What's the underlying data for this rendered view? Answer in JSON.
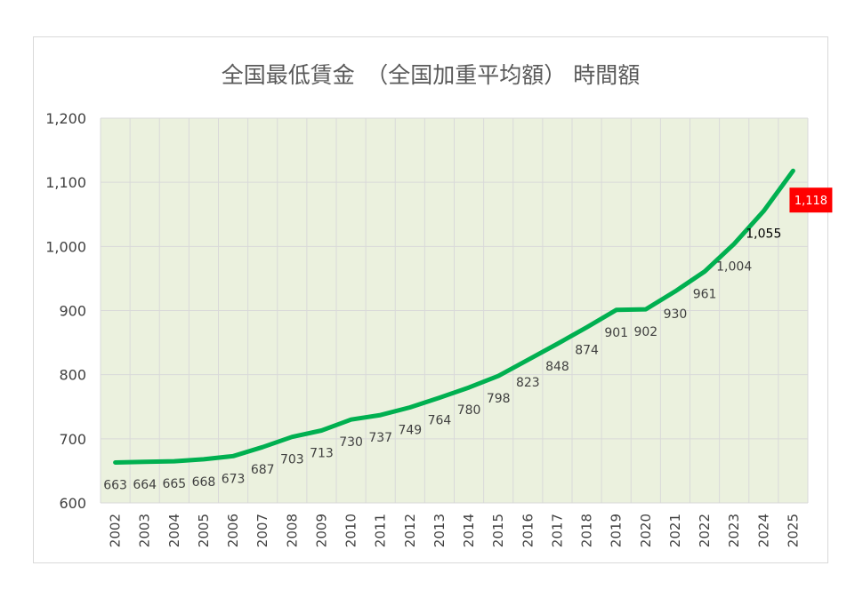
{
  "chart_data": {
    "type": "line",
    "title": "全国最低賃金　（全国加重平均額）  時間額",
    "categories": [
      "2002",
      "2003",
      "2004",
      "2005",
      "2006",
      "2007",
      "2008",
      "2009",
      "2010",
      "2011",
      "2012",
      "2013",
      "2014",
      "2015",
      "2016",
      "2017",
      "2018",
      "2019",
      "2020",
      "2021",
      "2022",
      "2023",
      "2024",
      "2025"
    ],
    "values": [
      663,
      664,
      665,
      668,
      673,
      687,
      703,
      713,
      730,
      737,
      749,
      764,
      780,
      798,
      823,
      848,
      874,
      901,
      902,
      930,
      961,
      1004,
      1055,
      1118
    ],
    "data_labels": [
      "663",
      "664",
      "665",
      "668",
      "673",
      "687",
      "703",
      "713",
      "730",
      "737",
      "749",
      "764",
      "780",
      "798",
      "823",
      "848",
      "874",
      "901",
      "902",
      "930",
      "961",
      "1,004",
      "1,055",
      "1,118"
    ],
    "ylim": [
      600,
      1200
    ],
    "yticks": [
      "600",
      "700",
      "800",
      "900",
      "1,000",
      "1,100",
      "1,200"
    ],
    "grid": true,
    "colors": {
      "line": "#00b050",
      "plot_background": "#ebf1de",
      "gridline": "#d9d9d9",
      "highlight_label_bg": "#ff0000"
    }
  }
}
